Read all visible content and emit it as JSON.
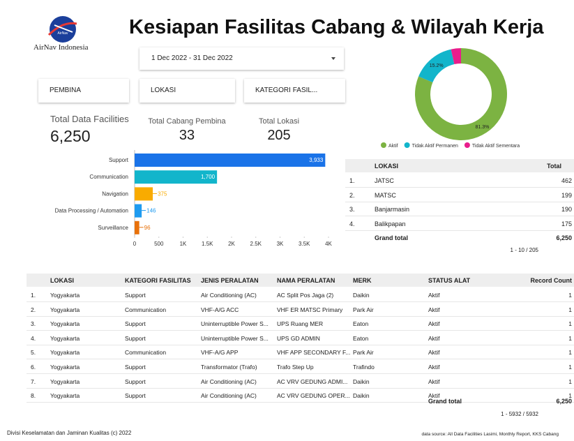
{
  "header": {
    "logo_badge": "AirNav",
    "logo_text": "AirNav Indonesia",
    "title": "Kesiapan Fasilitas Cabang & Wilayah Kerja"
  },
  "date_range": "1 Dec 2022 - 31 Dec 2022",
  "filters": [
    "PEMBINA",
    "LOKASI",
    "KATEGORI FASIL..."
  ],
  "scorecards": [
    {
      "label": "Total Data Facilities",
      "value": "6,250"
    },
    {
      "label": "Total Cabang Pembina",
      "value": "33"
    },
    {
      "label": "Total Lokasi",
      "value": "205"
    }
  ],
  "chart_data": [
    {
      "type": "pie",
      "donut": true,
      "categories": [
        "Aktif",
        "Tidak Aktif Permanen",
        "Tidak Aktif Sementara"
      ],
      "values": [
        81.3,
        15.2,
        3.5
      ],
      "value_labels": [
        "81.3%",
        "15.2%",
        null
      ],
      "colors": [
        "#7cb342",
        "#12b5cb",
        "#e91e8c"
      ],
      "legend": "bottom"
    },
    {
      "type": "bar",
      "orientation": "horizontal",
      "categories": [
        "Support",
        "Communication",
        "Navigation",
        "Data Processing / Automation",
        "Surveillance"
      ],
      "values": [
        3933,
        1700,
        375,
        146,
        96
      ],
      "value_labels": [
        "3,933",
        "1,700",
        "375",
        "146",
        "96"
      ],
      "colors": [
        "#1a73e8",
        "#12b5cb",
        "#f9ab00",
        "#1e9bf0",
        "#e8710a"
      ],
      "xlim": [
        0,
        4000
      ],
      "xticks": [
        0,
        500,
        {
          "value": 1000,
          "label": "1K"
        },
        {
          "value": 1500,
          "label": "1.5K"
        },
        {
          "value": 2000,
          "label": "2K"
        },
        {
          "value": 2500,
          "label": "2.5K"
        },
        {
          "value": 3000,
          "label": "3K"
        },
        {
          "value": 3500,
          "label": "3.5K"
        },
        {
          "value": 4000,
          "label": "4K"
        }
      ]
    }
  ],
  "location_table": {
    "columns": [
      "LOKASI",
      "Total"
    ],
    "rows": [
      [
        "1.",
        "JATSC",
        "462"
      ],
      [
        "2.",
        "MATSC",
        "199"
      ],
      [
        "3.",
        "Banjarmasin",
        "190"
      ],
      [
        "4.",
        "Balikpapan",
        "175"
      ]
    ],
    "grand_total": [
      "Grand total",
      "6,250"
    ],
    "pagination": "1 - 10 / 205"
  },
  "facility_table": {
    "columns": [
      "LOKASI",
      "KATEGORI FASILITAS",
      "JENIS PERALATAN",
      "NAMA PERALATAN",
      "MERK",
      "STATUS ALAT",
      "Record Count"
    ],
    "rows": [
      [
        "1.",
        "Yogyakarta",
        "Support",
        "Air Conditioning (AC)",
        "AC Split Pos Jaga (2)",
        "Daikin",
        "Aktif",
        "1"
      ],
      [
        "2.",
        "Yogyakarta",
        "Communication",
        "VHF-A/G ACC",
        "VHF ER MATSC Primary",
        "Park Air",
        "Aktif",
        "1"
      ],
      [
        "3.",
        "Yogyakarta",
        "Support",
        "Uninterruptible Power S...",
        "UPS Ruang MER",
        "Eaton",
        "Aktif",
        "1"
      ],
      [
        "4.",
        "Yogyakarta",
        "Support",
        "Uninterruptible Power S...",
        "UPS GD ADMIN",
        "Eaton",
        "Aktif",
        "1"
      ],
      [
        "5.",
        "Yogyakarta",
        "Communication",
        "VHF-A/G APP",
        "VHF APP SECONDARY F...",
        "Park Air",
        "Aktif",
        "1"
      ],
      [
        "6.",
        "Yogyakarta",
        "Support",
        "Transformator (Trafo)",
        "Trafo Step Up",
        "Trafindo",
        "Aktif",
        "1"
      ],
      [
        "7.",
        "Yogyakarta",
        "Support",
        "Air Conditioning (AC)",
        "AC VRV GEDUNG ADMI...",
        "Daikin",
        "Aktif",
        "1"
      ],
      [
        "8.",
        "Yogyakarta",
        "Support",
        "Air Conditioning (AC)",
        "AC VRV GEDUNG OPER...",
        "Daikin",
        "Aktif",
        "1"
      ]
    ],
    "grand_total": [
      "Grand total",
      "6,250"
    ],
    "pagination": "1 - 5932 / 5932"
  },
  "footer": {
    "left": "Divisi Keselamatan dan Jaminan Kualitas (c) 2022",
    "right": "data source: All Data Facilities Lasimi, Monthly Report, KKS Cabang"
  }
}
